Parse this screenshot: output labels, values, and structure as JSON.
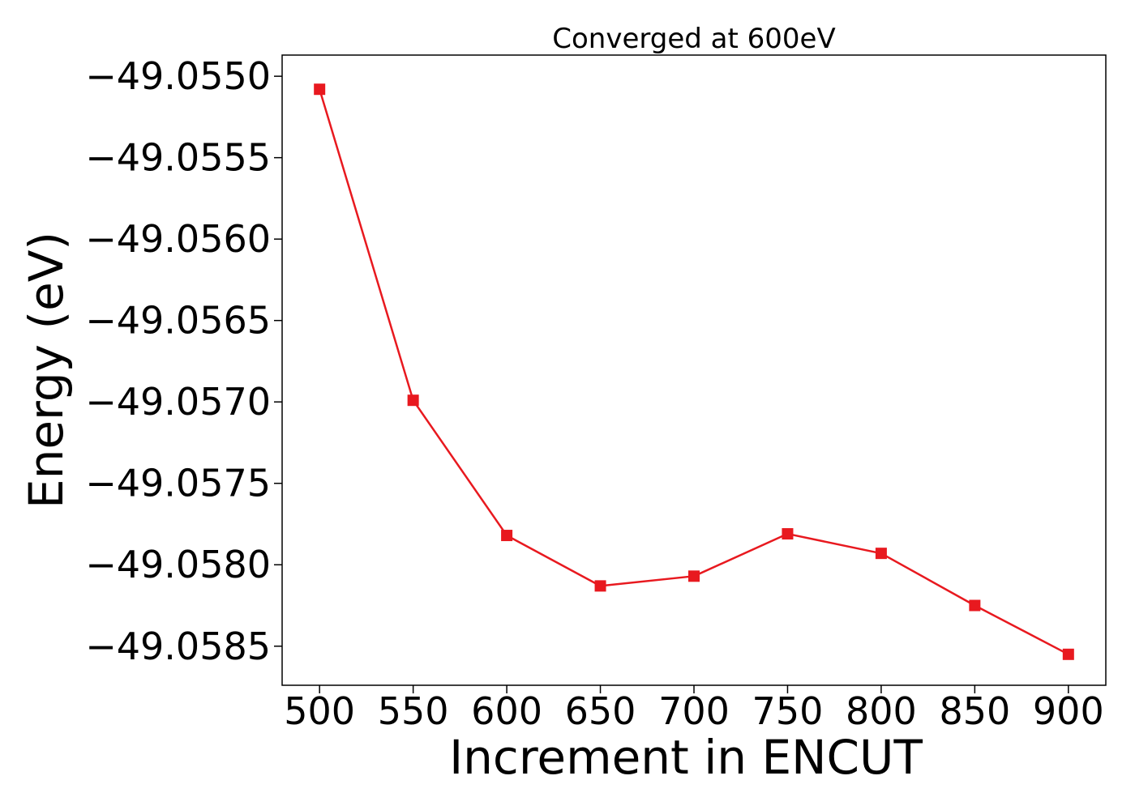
{
  "chart_data": {
    "type": "line",
    "title": "Converged at 600eV",
    "xlabel": "Increment in ENCUT",
    "ylabel": "Energy (eV)",
    "x": [
      500,
      550,
      600,
      650,
      700,
      750,
      800,
      850,
      900
    ],
    "x_ticks": [
      500,
      550,
      600,
      650,
      700,
      750,
      800,
      850,
      900
    ],
    "xlim": [
      480,
      920
    ],
    "y_ticks": [
      -49.055,
      -49.0555,
      -49.056,
      -49.0565,
      -49.057,
      -49.0575,
      -49.058,
      -49.0585
    ],
    "ylim": [
      -49.05874,
      -49.05487
    ],
    "grid": false,
    "series": [
      {
        "values": [
          -49.05508,
          -49.05699,
          -49.05782,
          -49.05813,
          -49.05807,
          -49.05781,
          -49.05793,
          -49.05825,
          -49.05855
        ],
        "color": "#e8191f",
        "marker": "square"
      }
    ]
  }
}
